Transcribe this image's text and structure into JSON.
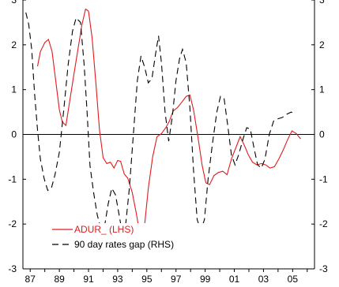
{
  "chart_data": {
    "type": "line",
    "x_range": [
      1986.5,
      2006.5
    ],
    "x_ticks": [
      {
        "label": "87",
        "x": 1987
      },
      {
        "label": "89",
        "x": 1989
      },
      {
        "label": "91",
        "x": 1991
      },
      {
        "label": "93",
        "x": 1993
      },
      {
        "label": "95",
        "x": 1995
      },
      {
        "label": "97",
        "x": 1997
      },
      {
        "label": "99",
        "x": 1999
      },
      {
        "label": "01",
        "x": 2001
      },
      {
        "label": "03",
        "x": 2003
      },
      {
        "label": "05",
        "x": 2005
      }
    ],
    "y_left_range": [
      -3,
      3
    ],
    "y_right_range": [
      -3,
      3
    ],
    "y_ticks_left": [
      "3",
      "2",
      "1",
      "0",
      "-1",
      "-2",
      "-3"
    ],
    "y_ticks_right": [
      "3",
      "2",
      "1",
      "0",
      "-1",
      "-2",
      "-3"
    ],
    "zero_line": true,
    "legend_position": "bottom-left",
    "series": [
      {
        "name": "ADUR_ (LHS)",
        "axis": "left",
        "color": "#e31a1c",
        "style": "solid",
        "points": [
          [
            1987.5,
            1.52
          ],
          [
            1987.7,
            1.85
          ],
          [
            1988.0,
            2.05
          ],
          [
            1988.25,
            2.12
          ],
          [
            1988.5,
            1.85
          ],
          [
            1988.75,
            1.2
          ],
          [
            1989.0,
            0.55
          ],
          [
            1989.2,
            0.28
          ],
          [
            1989.45,
            0.2
          ],
          [
            1989.7,
            0.72
          ],
          [
            1990.0,
            1.35
          ],
          [
            1990.3,
            1.95
          ],
          [
            1990.55,
            2.45
          ],
          [
            1990.8,
            2.8
          ],
          [
            1991.0,
            2.75
          ],
          [
            1991.25,
            2.15
          ],
          [
            1991.5,
            1.15
          ],
          [
            1991.75,
            0.1
          ],
          [
            1992.0,
            -0.52
          ],
          [
            1992.25,
            -0.65
          ],
          [
            1992.5,
            -0.62
          ],
          [
            1992.75,
            -0.75
          ],
          [
            1993.0,
            -0.58
          ],
          [
            1993.2,
            -0.6
          ],
          [
            1993.45,
            -0.88
          ],
          [
            1993.7,
            -0.98
          ],
          [
            1994.0,
            -1.3
          ],
          [
            1994.3,
            -1.8
          ],
          [
            1994.6,
            -2.38
          ],
          [
            1994.85,
            -2.0
          ],
          [
            1995.1,
            -1.2
          ],
          [
            1995.4,
            -0.5
          ],
          [
            1995.7,
            -0.05
          ],
          [
            1996.0,
            0.02
          ],
          [
            1996.3,
            0.15
          ],
          [
            1996.55,
            0.3
          ],
          [
            1996.8,
            0.52
          ],
          [
            1997.1,
            0.6
          ],
          [
            1997.4,
            0.72
          ],
          [
            1997.7,
            0.85
          ],
          [
            1997.95,
            0.88
          ],
          [
            1998.2,
            0.55
          ],
          [
            1998.5,
            -0.05
          ],
          [
            1998.8,
            -0.7
          ],
          [
            1999.05,
            -1.08
          ],
          [
            1999.3,
            -1.12
          ],
          [
            1999.6,
            -0.92
          ],
          [
            1999.9,
            -0.85
          ],
          [
            2000.2,
            -0.82
          ],
          [
            2000.5,
            -0.9
          ],
          [
            2000.8,
            -0.55
          ],
          [
            2001.1,
            -0.3
          ],
          [
            2001.4,
            -0.05
          ],
          [
            2001.7,
            -0.25
          ],
          [
            2001.95,
            -0.45
          ],
          [
            2002.25,
            -0.62
          ],
          [
            2002.55,
            -0.68
          ],
          [
            2002.85,
            -0.65
          ],
          [
            2003.15,
            -0.68
          ],
          [
            2003.45,
            -0.75
          ],
          [
            2003.75,
            -0.72
          ],
          [
            2004.05,
            -0.55
          ],
          [
            2004.35,
            -0.35
          ],
          [
            2004.65,
            -0.12
          ],
          [
            2004.95,
            0.08
          ],
          [
            2005.25,
            0.02
          ],
          [
            2005.55,
            -0.1
          ]
        ]
      },
      {
        "name": "90 day rates gap (RHS)",
        "axis": "right",
        "color": "#000000",
        "style": "dashed",
        "points": [
          [
            1986.7,
            2.72
          ],
          [
            1986.9,
            2.45
          ],
          [
            1987.1,
            1.9
          ],
          [
            1987.3,
            0.9
          ],
          [
            1987.5,
            0.1
          ],
          [
            1987.7,
            -0.55
          ],
          [
            1987.95,
            -0.98
          ],
          [
            1988.2,
            -1.25
          ],
          [
            1988.45,
            -1.2
          ],
          [
            1988.7,
            -0.9
          ],
          [
            1989.0,
            -0.4
          ],
          [
            1989.3,
            0.55
          ],
          [
            1989.6,
            1.55
          ],
          [
            1989.9,
            2.3
          ],
          [
            1990.15,
            2.6
          ],
          [
            1990.45,
            2.5
          ],
          [
            1990.7,
            1.55
          ],
          [
            1990.9,
            0.5
          ],
          [
            1991.1,
            -0.7
          ],
          [
            1991.35,
            -1.3
          ],
          [
            1991.6,
            -1.8
          ],
          [
            1991.85,
            -2.1
          ],
          [
            1992.1,
            -2.05
          ],
          [
            1992.35,
            -1.55
          ],
          [
            1992.6,
            -1.2
          ],
          [
            1992.85,
            -1.35
          ],
          [
            1993.1,
            -1.8
          ],
          [
            1993.3,
            -2.18
          ],
          [
            1993.55,
            -2.0
          ],
          [
            1993.8,
            -1.2
          ],
          [
            1994.1,
            0.1
          ],
          [
            1994.35,
            1.2
          ],
          [
            1994.6,
            1.75
          ],
          [
            1994.85,
            1.5
          ],
          [
            1995.1,
            1.15
          ],
          [
            1995.35,
            1.25
          ],
          [
            1995.6,
            1.8
          ],
          [
            1995.8,
            2.2
          ],
          [
            1996.0,
            1.6
          ],
          [
            1996.25,
            0.5
          ],
          [
            1996.5,
            -0.15
          ],
          [
            1996.75,
            0.4
          ],
          [
            1997.0,
            1.2
          ],
          [
            1997.25,
            1.7
          ],
          [
            1997.45,
            1.9
          ],
          [
            1997.7,
            1.6
          ],
          [
            1997.95,
            0.6
          ],
          [
            1998.2,
            -0.8
          ],
          [
            1998.45,
            -1.9
          ],
          [
            1998.7,
            -2.15
          ],
          [
            1998.95,
            -1.9
          ],
          [
            1999.2,
            -1.0
          ],
          [
            1999.5,
            -0.2
          ],
          [
            1999.8,
            0.5
          ],
          [
            2000.05,
            0.85
          ],
          [
            2000.3,
            0.8
          ],
          [
            2000.55,
            0.2
          ],
          [
            2000.8,
            -0.45
          ],
          [
            2001.05,
            -0.68
          ],
          [
            2001.3,
            -0.45
          ],
          [
            2001.6,
            -0.1
          ],
          [
            2001.85,
            0.15
          ],
          [
            2002.1,
            0.12
          ],
          [
            2002.35,
            -0.3
          ],
          [
            2002.6,
            -0.68
          ],
          [
            2002.85,
            -0.75
          ],
          [
            2003.1,
            -0.55
          ],
          [
            2003.4,
            0.0
          ],
          [
            2003.7,
            0.3
          ],
          [
            2004.0,
            0.35
          ],
          [
            2004.3,
            0.38
          ],
          [
            2004.6,
            0.45
          ],
          [
            2004.9,
            0.5
          ],
          [
            2005.2,
            0.45
          ]
        ]
      }
    ]
  }
}
